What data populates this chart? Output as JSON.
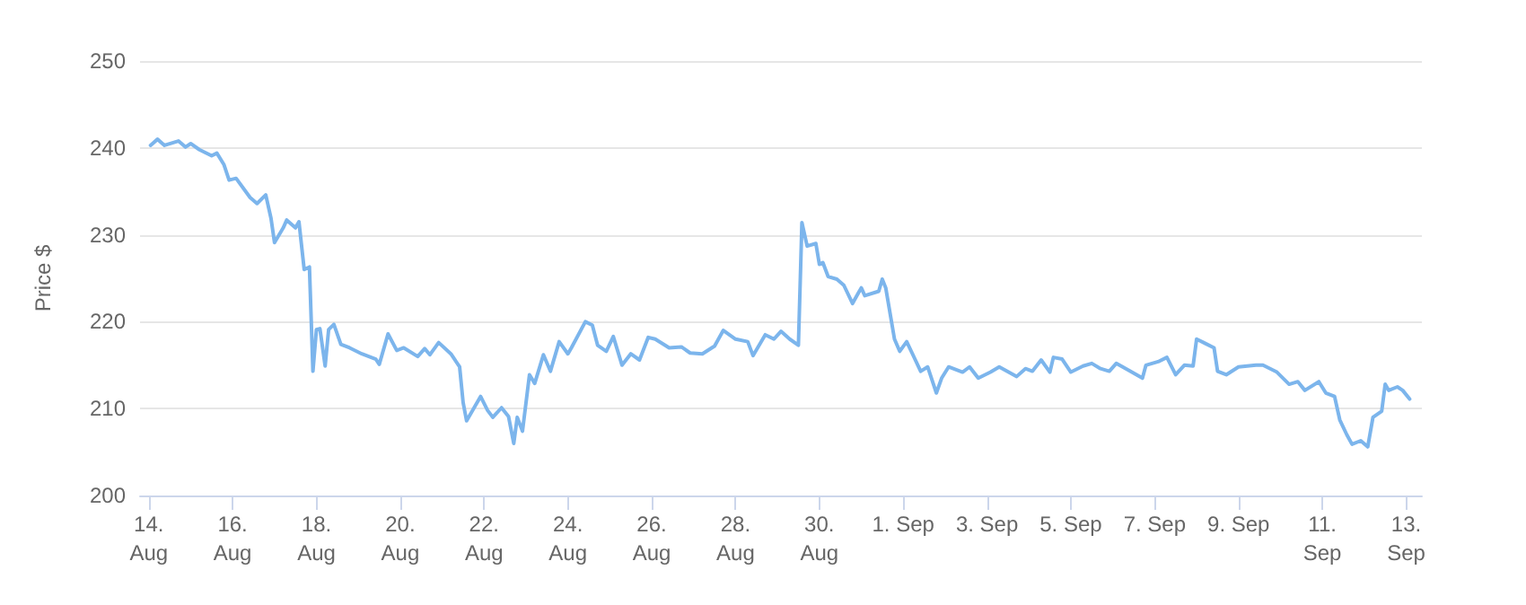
{
  "chart_data": {
    "type": "line",
    "ylabel": "Price $",
    "color": "#7cb5ec",
    "marker": "none",
    "line_style": "solid",
    "grid": "y",
    "xlim": [
      "--08-13T19:00",
      "--09-13T09:00"
    ],
    "xticks": [
      {
        "value": "--08-14",
        "label": "14.\nAug"
      },
      {
        "value": "--08-16",
        "label": "16.\nAug"
      },
      {
        "value": "--08-18",
        "label": "18.\nAug"
      },
      {
        "value": "--08-20",
        "label": "20.\nAug"
      },
      {
        "value": "--08-22",
        "label": "22.\nAug"
      },
      {
        "value": "--08-24",
        "label": "24.\nAug"
      },
      {
        "value": "--08-26",
        "label": "26.\nAug"
      },
      {
        "value": "--08-28",
        "label": "28.\nAug"
      },
      {
        "value": "--08-30",
        "label": "30.\nAug"
      },
      {
        "value": "--09-01",
        "label": "1. Sep"
      },
      {
        "value": "--09-03",
        "label": "3. Sep"
      },
      {
        "value": "--09-05",
        "label": "5. Sep"
      },
      {
        "value": "--09-07",
        "label": "7. Sep"
      },
      {
        "value": "--09-09",
        "label": "9. Sep"
      },
      {
        "value": "--09-11",
        "label": "11.\nSep"
      },
      {
        "value": "--09-13",
        "label": "13.\nSep"
      }
    ],
    "ylim": [
      200,
      250
    ],
    "yticks": [
      200,
      210,
      220,
      230,
      240,
      250
    ],
    "x": [
      "--08-14T01:00",
      "--08-14T05:00",
      "--08-14T09:00",
      "--08-14T17:00",
      "--08-14T21:00",
      "--08-15T00:00",
      "--08-15T05:00",
      "--08-15T12:00",
      "--08-15T15:00",
      "--08-15T19:00",
      "--08-15T22:00",
      "--08-16T02:00",
      "--08-16T10:00",
      "--08-16T14:00",
      "--08-16T19:00",
      "--08-16T22:00",
      "--08-17T00:00",
      "--08-17T05:00",
      "--08-17T07:00",
      "--08-17T12:00",
      "--08-17T14:00",
      "--08-17T17:00",
      "--08-17T20:00",
      "--08-17T22:00",
      "--08-18T00:00",
      "--08-18T02:00",
      "--08-18T05:00",
      "--08-18T07:00",
      "--08-18T10:00",
      "--08-18T14:00",
      "--08-18T19:00",
      "--08-19T02:00",
      "--08-19T10:00",
      "--08-19T12:00",
      "--08-19T17:00",
      "--08-19T22:00",
      "--08-20T02:00",
      "--08-20T10:00",
      "--08-20T14:00",
      "--08-20T17:00",
      "--08-20T22:00",
      "--08-21T05:00",
      "--08-21T10:00",
      "--08-21T12:00",
      "--08-21T14:00",
      "--08-21T22:00",
      "--08-22T02:00",
      "--08-22T05:00",
      "--08-22T10:00",
      "--08-22T14:00",
      "--08-22T17:00",
      "--08-22T19:00",
      "--08-22T22:00",
      "--08-23T02:00",
      "--08-23T05:00",
      "--08-23T10:00",
      "--08-23T14:00",
      "--08-23T19:00",
      "--08-24T00:00",
      "--08-24T02:00",
      "--08-24T10:00",
      "--08-24T14:00",
      "--08-24T17:00",
      "--08-24T22:00",
      "--08-25T02:00",
      "--08-25T07:00",
      "--08-25T12:00",
      "--08-25T17:00",
      "--08-25T22:00",
      "--08-26T02:00",
      "--08-26T10:00",
      "--08-26T17:00",
      "--08-26T22:00",
      "--08-27T05:00",
      "--08-27T12:00",
      "--08-27T17:00",
      "--08-28T00:00",
      "--08-28T07:00",
      "--08-28T10:00",
      "--08-28T17:00",
      "--08-28T22:00",
      "--08-29T02:00",
      "--08-29T07:00",
      "--08-29T12:00",
      "--08-29T14:00",
      "--08-29T17:00",
      "--08-29T22:00",
      "--08-30T00:00",
      "--08-30T02:00",
      "--08-30T05:00",
      "--08-30T10:00",
      "--08-30T14:00",
      "--08-30T19:00",
      "--08-30T22:00",
      "--08-31T00:00",
      "--08-31T02:00",
      "--08-31T10:00",
      "--08-31T12:00",
      "--08-31T14:00",
      "--08-31T19:00",
      "--08-31T22:00",
      "--09-01T02:00",
      "--09-01T10:00",
      "--09-01T14:00",
      "--09-01T19:00",
      "--09-01T22:00",
      "--09-02T02:00",
      "--09-02T10:00",
      "--09-02T14:00",
      "--09-02T19:00",
      "--09-03T02:00",
      "--09-03T07:00",
      "--09-03T17:00",
      "--09-03T22:00",
      "--09-04T02:00",
      "--09-04T07:00",
      "--09-04T12:00",
      "--09-04T14:00",
      "--09-04T19:00",
      "--09-05T00:00",
      "--09-05T07:00",
      "--09-05T12:00",
      "--09-05T17:00",
      "--09-05T22:00",
      "--09-06T02:00",
      "--09-06T10:00",
      "--09-06T17:00",
      "--09-06T19:00",
      "--09-07T02:00",
      "--09-07T07:00",
      "--09-07T12:00",
      "--09-07T17:00",
      "--09-07T22:00",
      "--09-08T00:00",
      "--09-08T05:00",
      "--09-08T10:00",
      "--09-08T12:00",
      "--09-08T17:00",
      "--09-09T00:00",
      "--09-09T10:00",
      "--09-09T14:00",
      "--09-09T22:00",
      "--09-10T05:00",
      "--09-10T10:00",
      "--09-10T14:00",
      "--09-10T22:00",
      "--09-11T02:00",
      "--09-11T07:00",
      "--09-11T10:00",
      "--09-11T14:00",
      "--09-11T17:00",
      "--09-11T22:00",
      "--09-12T02:00",
      "--09-12T05:00",
      "--09-12T10:00",
      "--09-12T12:00",
      "--09-12T14:00",
      "--09-12T19:00",
      "--09-12T22:00",
      "--09-13T02:00"
    ],
    "values": [
      240.3,
      241.0,
      240.3,
      240.8,
      240.1,
      240.5,
      239.8,
      239.1,
      239.4,
      238.1,
      236.3,
      236.5,
      234.3,
      233.6,
      234.6,
      231.9,
      229.1,
      230.8,
      231.7,
      230.8,
      231.5,
      226.0,
      226.3,
      214.3,
      219.1,
      219.2,
      214.9,
      219.1,
      219.7,
      217.4,
      217.0,
      216.3,
      215.7,
      215.1,
      218.6,
      216.7,
      217.0,
      216.0,
      216.9,
      216.2,
      217.6,
      216.3,
      214.8,
      210.7,
      208.6,
      211.4,
      209.8,
      209.0,
      210.1,
      209.1,
      206.0,
      209.0,
      207.4,
      213.9,
      212.9,
      216.2,
      214.3,
      217.7,
      216.3,
      217.0,
      220.0,
      219.6,
      217.3,
      216.6,
      218.3,
      215.0,
      216.3,
      215.6,
      218.2,
      218.0,
      217.0,
      217.1,
      216.4,
      216.3,
      217.2,
      219.0,
      218.0,
      217.7,
      216.1,
      218.5,
      218.0,
      218.9,
      218.0,
      217.3,
      231.4,
      228.7,
      229.0,
      226.6,
      226.8,
      225.2,
      224.9,
      224.2,
      222.1,
      223.2,
      223.9,
      223.0,
      223.5,
      224.9,
      223.9,
      218.0,
      216.6,
      217.7,
      214.3,
      214.8,
      211.8,
      213.5,
      214.8,
      214.2,
      214.8,
      213.5,
      214.2,
      214.8,
      213.7,
      214.6,
      214.3,
      215.6,
      214.2,
      215.9,
      215.7,
      214.2,
      214.9,
      215.2,
      214.6,
      214.3,
      215.2,
      214.3,
      213.5,
      215.0,
      215.4,
      215.9,
      213.9,
      215.0,
      214.9,
      218.0,
      217.5,
      217.0,
      214.3,
      213.9,
      214.8,
      215.0,
      215.0,
      214.2,
      212.8,
      213.1,
      212.1,
      213.1,
      211.8,
      211.4,
      208.7,
      207.0,
      205.9,
      206.3,
      205.6,
      209.0,
      209.7,
      212.8,
      212.1,
      212.5,
      212.1,
      211.1
    ]
  }
}
